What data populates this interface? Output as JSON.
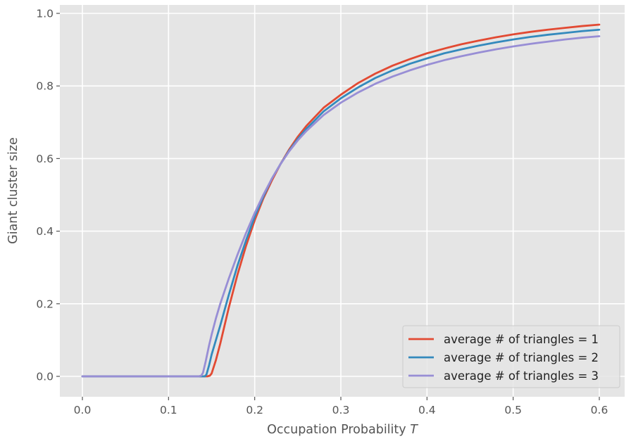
{
  "chart_data": {
    "type": "line",
    "title": "",
    "xlabel": "Occupation Probability ",
    "xlabel_italic": "T",
    "ylabel": "Giant cluster size",
    "xlim": [
      -0.03,
      0.63
    ],
    "ylim": [
      -0.05,
      1.02
    ],
    "xticks": [
      0.0,
      0.1,
      0.2,
      0.3,
      0.4,
      0.5,
      0.6
    ],
    "xtick_labels": [
      "0.0",
      "0.1",
      "0.2",
      "0.3",
      "0.4",
      "0.5",
      "0.6"
    ],
    "yticks": [
      0.0,
      0.2,
      0.4,
      0.6,
      0.8,
      1.0
    ],
    "ytick_labels": [
      "0.0",
      "0.2",
      "0.4",
      "0.6",
      "0.8",
      "1.0"
    ],
    "grid": true,
    "background": "#e5e5e5",
    "grid_color": "#ffffff",
    "legend_position": "bottom-right",
    "series": [
      {
        "name": "average # of triangles = 1",
        "color": "#e24a33",
        "points": [
          [
            0.0,
            0.0
          ],
          [
            0.14,
            0.0
          ],
          [
            0.145,
            0.0
          ],
          [
            0.148,
            0.002
          ],
          [
            0.15,
            0.008
          ],
          [
            0.155,
            0.045
          ],
          [
            0.16,
            0.09
          ],
          [
            0.17,
            0.19
          ],
          [
            0.18,
            0.28
          ],
          [
            0.19,
            0.36
          ],
          [
            0.2,
            0.43
          ],
          [
            0.21,
            0.49
          ],
          [
            0.22,
            0.54
          ],
          [
            0.23,
            0.585
          ],
          [
            0.24,
            0.625
          ],
          [
            0.25,
            0.66
          ],
          [
            0.26,
            0.69
          ],
          [
            0.28,
            0.74
          ],
          [
            0.3,
            0.776
          ],
          [
            0.32,
            0.808
          ],
          [
            0.34,
            0.834
          ],
          [
            0.36,
            0.856
          ],
          [
            0.38,
            0.874
          ],
          [
            0.4,
            0.89
          ],
          [
            0.42,
            0.903
          ],
          [
            0.44,
            0.915
          ],
          [
            0.46,
            0.925
          ],
          [
            0.48,
            0.934
          ],
          [
            0.5,
            0.942
          ],
          [
            0.52,
            0.949
          ],
          [
            0.54,
            0.955
          ],
          [
            0.56,
            0.96
          ],
          [
            0.58,
            0.965
          ],
          [
            0.6,
            0.969
          ]
        ]
      },
      {
        "name": "average # of triangles = 2",
        "color": "#348abd",
        "points": [
          [
            0.0,
            0.0
          ],
          [
            0.138,
            0.0
          ],
          [
            0.142,
            0.0
          ],
          [
            0.144,
            0.005
          ],
          [
            0.147,
            0.03
          ],
          [
            0.15,
            0.06
          ],
          [
            0.155,
            0.1
          ],
          [
            0.16,
            0.14
          ],
          [
            0.17,
            0.225
          ],
          [
            0.18,
            0.305
          ],
          [
            0.19,
            0.375
          ],
          [
            0.2,
            0.44
          ],
          [
            0.21,
            0.495
          ],
          [
            0.22,
            0.545
          ],
          [
            0.23,
            0.585
          ],
          [
            0.24,
            0.622
          ],
          [
            0.25,
            0.654
          ],
          [
            0.26,
            0.682
          ],
          [
            0.28,
            0.73
          ],
          [
            0.3,
            0.766
          ],
          [
            0.32,
            0.796
          ],
          [
            0.34,
            0.822
          ],
          [
            0.36,
            0.843
          ],
          [
            0.38,
            0.861
          ],
          [
            0.4,
            0.876
          ],
          [
            0.42,
            0.89
          ],
          [
            0.44,
            0.901
          ],
          [
            0.46,
            0.911
          ],
          [
            0.48,
            0.92
          ],
          [
            0.5,
            0.928
          ],
          [
            0.52,
            0.935
          ],
          [
            0.54,
            0.941
          ],
          [
            0.56,
            0.946
          ],
          [
            0.58,
            0.951
          ],
          [
            0.6,
            0.955
          ]
        ]
      },
      {
        "name": "average # of triangles = 3",
        "color": "#988ed5",
        "points": [
          [
            0.0,
            0.0
          ],
          [
            0.135,
            0.0
          ],
          [
            0.138,
            0.002
          ],
          [
            0.14,
            0.01
          ],
          [
            0.143,
            0.04
          ],
          [
            0.147,
            0.085
          ],
          [
            0.15,
            0.115
          ],
          [
            0.155,
            0.16
          ],
          [
            0.16,
            0.2
          ],
          [
            0.17,
            0.27
          ],
          [
            0.18,
            0.335
          ],
          [
            0.19,
            0.395
          ],
          [
            0.2,
            0.45
          ],
          [
            0.21,
            0.5
          ],
          [
            0.22,
            0.545
          ],
          [
            0.23,
            0.585
          ],
          [
            0.24,
            0.62
          ],
          [
            0.25,
            0.65
          ],
          [
            0.26,
            0.676
          ],
          [
            0.28,
            0.72
          ],
          [
            0.3,
            0.754
          ],
          [
            0.32,
            0.782
          ],
          [
            0.34,
            0.806
          ],
          [
            0.36,
            0.826
          ],
          [
            0.38,
            0.843
          ],
          [
            0.4,
            0.858
          ],
          [
            0.42,
            0.871
          ],
          [
            0.44,
            0.882
          ],
          [
            0.46,
            0.892
          ],
          [
            0.48,
            0.901
          ],
          [
            0.5,
            0.909
          ],
          [
            0.52,
            0.916
          ],
          [
            0.54,
            0.922
          ],
          [
            0.56,
            0.928
          ],
          [
            0.58,
            0.933
          ],
          [
            0.6,
            0.937
          ]
        ]
      }
    ]
  }
}
